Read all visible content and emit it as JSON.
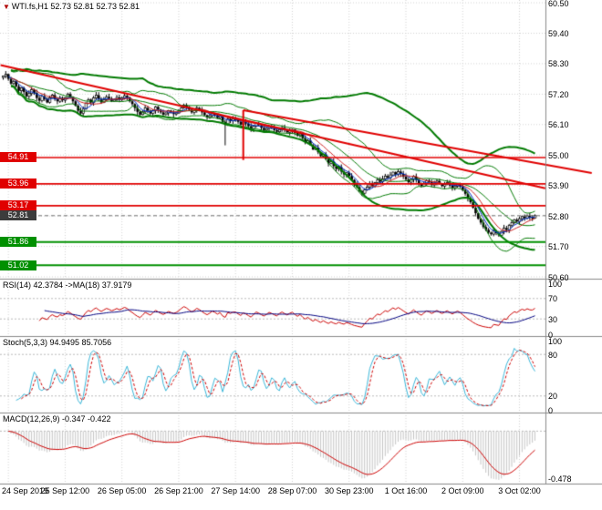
{
  "title": {
    "text": "WTI.fs,H1 52.73 52.81 52.73 52.81"
  },
  "colors": {
    "grid": "#d2d2d2",
    "candle": "#000000",
    "bb_green": "#007a00",
    "ma_fast_blue": "#0033cc",
    "ma_slow_red": "#cc2222",
    "trend_red": "#e00000",
    "level_red": "#e00000",
    "level_green": "#009000",
    "current_badge": "#3c3c3c",
    "current_line": "#707070",
    "rsi_line": "#cc0000",
    "rsi_ma": "#000080",
    "stoch_k": "#3ab6d8",
    "stoch_d": "#cc0000",
    "macd_hist": "#c4c4c4",
    "macd_signal": "#cc0000",
    "separator": "#888888",
    "indicator_level": "#b8b8b8"
  },
  "chart_data": {
    "type": "candlestick",
    "symbol": "WTI.fs",
    "timeframe": "H1",
    "title": "WTI.fs,H1 52.73 52.81 52.73 52.81",
    "y_axis": {
      "max": 60.5,
      "min": 50.6,
      "tick_step": 1.1,
      "ticks": [
        "60.50",
        "59.40",
        "58.30",
        "57.20",
        "56.10",
        "55.00",
        "53.90",
        "52.80",
        "51.70",
        "50.60"
      ]
    },
    "x_labels": [
      "24 Sep 2019",
      "25 Sep 12:00",
      "26 Sep 05:00",
      "26 Sep 21:00",
      "27 Sep 14:00",
      "28 Sep 07:00",
      "30 Sep 23:00",
      "1 Oct 16:00",
      "2 Oct 09:00",
      "3 Oct 02:00"
    ],
    "x_label_bars": [
      2,
      24,
      46,
      68,
      90,
      112,
      134,
      156,
      178,
      200
    ],
    "candles": {
      "open_first": 57.8,
      "closes": [
        57.85,
        57.92,
        57.75,
        57.58,
        57.66,
        57.48,
        57.32,
        57.42,
        57.28,
        57.12,
        57.22,
        57.36,
        57.24,
        57.06,
        56.96,
        57.12,
        57.02,
        56.9,
        57.06,
        57.16,
        57.02,
        56.94,
        57.06,
        56.98,
        57.06,
        57.2,
        57.1,
        56.94,
        56.78,
        56.6,
        56.5,
        56.66,
        56.86,
        57.0,
        56.9,
        57.06,
        57.16,
        57.02,
        56.9,
        57.0,
        57.1,
        57.04,
        56.94,
        57.0,
        57.08,
        57.0,
        57.06,
        57.14,
        57.08,
        56.94,
        56.84,
        56.7,
        56.56,
        56.46,
        56.56,
        56.7,
        56.6,
        56.5,
        56.6,
        56.74,
        56.64,
        56.54,
        56.46,
        56.52,
        56.6,
        56.54,
        56.48,
        56.52,
        56.6,
        56.7,
        56.8,
        56.74,
        56.64,
        56.54,
        56.6,
        56.7,
        56.64,
        56.54,
        56.44,
        56.36,
        56.42,
        56.5,
        56.44,
        56.34,
        56.4,
        56.2,
        56.1,
        56.3,
        56.24,
        56.3,
        56.3,
        56.2,
        56.1,
        56.2,
        56.14,
        56.04,
        55.94,
        56.04,
        56.14,
        56.08,
        55.98,
        55.9,
        55.96,
        56.04,
        55.98,
        55.9,
        55.84,
        55.92,
        55.98,
        55.9,
        55.82,
        55.88,
        55.92,
        55.8,
        55.7,
        55.76,
        55.6,
        55.46,
        55.52,
        55.36,
        55.2,
        55.26,
        55.1,
        54.96,
        55.02,
        54.86,
        54.7,
        54.76,
        54.6,
        54.5,
        54.56,
        54.4,
        54.3,
        54.36,
        54.24,
        54.1,
        53.94,
        53.84,
        53.7,
        53.62,
        53.74,
        53.84,
        53.96,
        53.88,
        54.0,
        54.1,
        54.04,
        54.14,
        54.24,
        54.18,
        54.28,
        54.38,
        54.3,
        54.4,
        54.32,
        54.22,
        54.12,
        54.02,
        54.12,
        54.22,
        54.1,
        53.98,
        53.88,
        53.98,
        54.08,
        54.02,
        53.92,
        53.98,
        54.06,
        53.96,
        53.88,
        53.94,
        54.0,
        53.9,
        53.82,
        53.88,
        53.94,
        53.86,
        53.74,
        53.6,
        53.44,
        53.3,
        53.1,
        52.9,
        52.7,
        52.56,
        52.4,
        52.3,
        52.2,
        52.14,
        52.26,
        52.18,
        52.1,
        52.24,
        52.36,
        52.3,
        52.46,
        52.56,
        52.66,
        52.6,
        52.7,
        52.78,
        52.72,
        52.8,
        52.74,
        52.73,
        52.81
      ],
      "spike_lows": [
        {
          "index": 86,
          "low": 55.35
        }
      ]
    },
    "overlays": {
      "bb_inner": {
        "period": 20,
        "deviation": 2.0
      },
      "bb_outer": {
        "period": 55,
        "deviation": 2.3
      },
      "ma_fast": {
        "period": 5
      },
      "ma_slow": {
        "period": 10
      }
    },
    "levels": [
      {
        "value": 54.91,
        "label": "54.91",
        "color": "#e00000"
      },
      {
        "value": 53.96,
        "label": "53.96",
        "color": "#e00000"
      },
      {
        "value": 53.17,
        "label": "53.17",
        "color": "#e00000"
      },
      {
        "value": 51.86,
        "label": "51.86",
        "color": "#009000"
      },
      {
        "value": 51.02,
        "label": "51.02",
        "color": "#009000"
      }
    ],
    "current_price": {
      "value": 52.81,
      "label": "52.81"
    },
    "annotations": {
      "trendlines": [
        {
          "bar1": -1,
          "price1": 58.25,
          "bar2": 210,
          "price2": 53.8
        },
        {
          "bar1": 93,
          "price1": 56.62,
          "bar2": 228,
          "price2": 54.35
        }
      ],
      "vline_segment": {
        "bar": 93,
        "price_top": 56.62,
        "price_bottom": 54.82
      }
    },
    "indicators": {
      "rsi": {
        "label": "RSI(14) 42.3784 ->MA(18) 37.9179",
        "period": 14,
        "ma_period": 18,
        "current": 42.3784,
        "ma_current": 37.9179,
        "levels": [
          70,
          30
        ],
        "axis_labels": [
          "100",
          "70",
          "30",
          "0"
        ],
        "axis_values": [
          100,
          70,
          30,
          0
        ]
      },
      "stochastic": {
        "label": "Stoch(5,3,3) 94.9495 85.7056",
        "k_period": 5,
        "d_period": 3,
        "slowing": 3,
        "k_current": 94.9495,
        "d_current": 85.7056,
        "levels": [
          80,
          20
        ],
        "axis_labels": [
          "100",
          "80",
          "20",
          "0"
        ],
        "axis_values": [
          100,
          80,
          20,
          0
        ]
      },
      "macd": {
        "label": "MACD(12,26,9) -0.347 -0.422",
        "fast": 12,
        "slow": 26,
        "signal": 9,
        "main_current": -0.347,
        "signal_current": -0.422,
        "axis_labels": [
          "-0.478"
        ],
        "axis_values": [
          -0.478
        ]
      }
    }
  }
}
